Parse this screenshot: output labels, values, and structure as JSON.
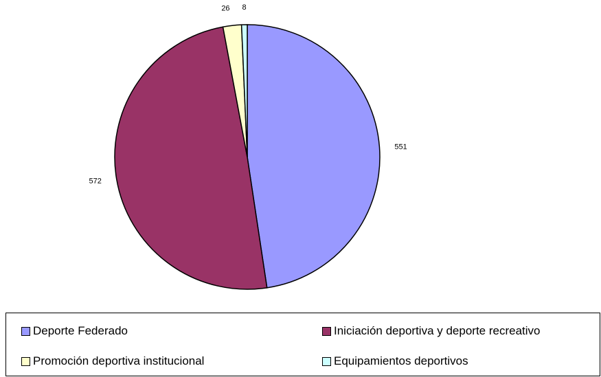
{
  "chart_data": {
    "type": "pie",
    "title": "",
    "slices": [
      {
        "name": "Deporte Federado",
        "value": 551,
        "label": "551",
        "color": "#9999ff"
      },
      {
        "name": "Iniciación deportiva y deporte recreativo",
        "value": 572,
        "label": "572",
        "color": "#993366"
      },
      {
        "name": "Promoción deportiva institucional",
        "value": 26,
        "label": "26",
        "color": "#ffffcc"
      },
      {
        "name": "Equipamientos deportivos",
        "value": 8,
        "label": "8",
        "color": "#ccffff"
      }
    ],
    "legend_position": "bottom",
    "start": "top",
    "direction": "clockwise"
  }
}
